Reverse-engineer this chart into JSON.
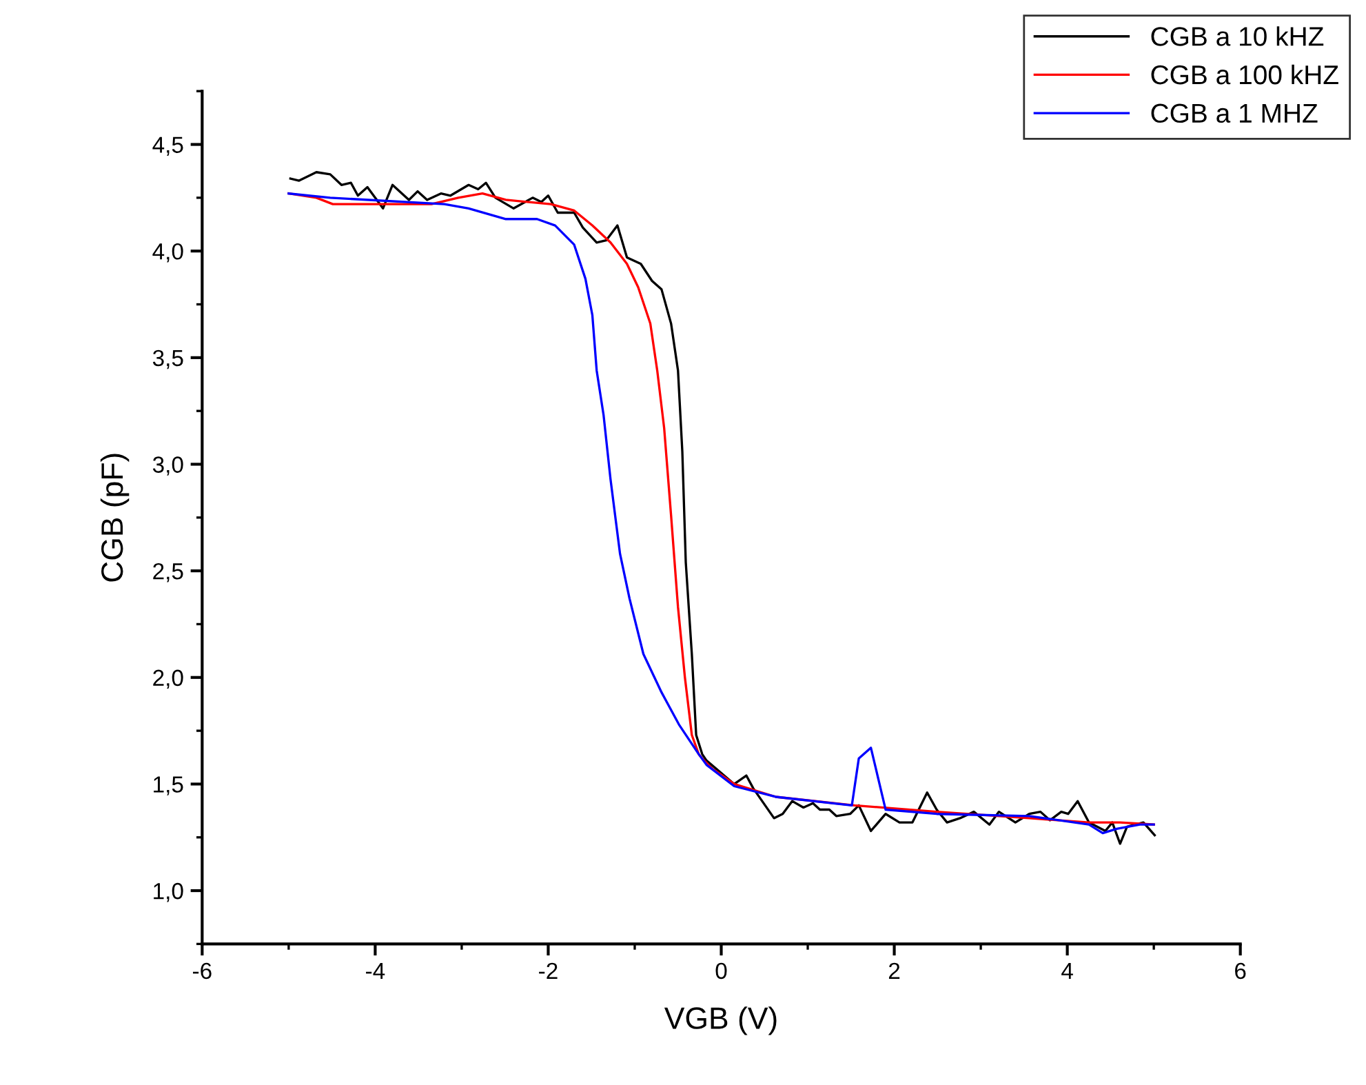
{
  "chart_data": {
    "type": "line",
    "xlabel": "VGB (V)",
    "ylabel": "CGB (pF)",
    "xlim": [
      -6,
      6
    ],
    "ylim": [
      0.75,
      4.75
    ],
    "xticks": [
      -6,
      -4,
      -2,
      0,
      2,
      4,
      6
    ],
    "yticks": [
      {
        "value": 1.0,
        "label": "1,0"
      },
      {
        "value": 1.5,
        "label": "1,5"
      },
      {
        "value": 2.0,
        "label": "2,0"
      },
      {
        "value": 2.5,
        "label": "2,5"
      },
      {
        "value": 3.0,
        "label": "3,0"
      },
      {
        "value": 3.5,
        "label": "3,5"
      },
      {
        "value": 4.0,
        "label": "4,0"
      },
      {
        "value": 4.5,
        "label": "4,5"
      }
    ],
    "grid": false,
    "legend": "top right",
    "marker": "none",
    "line_style": "solid",
    "series": [
      {
        "name": "CGB a 10 kHZ",
        "color": "#000000",
        "x": [
          -4.98,
          -4.88,
          -4.68,
          -4.52,
          -4.39,
          -4.28,
          -4.2,
          -4.09,
          -3.91,
          -3.8,
          -3.61,
          -3.51,
          -3.4,
          -3.24,
          -3.13,
          -2.92,
          -2.81,
          -2.72,
          -2.61,
          -2.4,
          -2.18,
          -2.08,
          -2.0,
          -1.89,
          -1.7,
          -1.6,
          -1.44,
          -1.33,
          -1.2,
          -1.09,
          -0.93,
          -0.8,
          -0.69,
          -0.58,
          -0.5,
          -0.45,
          -0.41,
          -0.34,
          -0.29,
          -0.22,
          -0.17,
          0.15,
          0.29,
          0.37,
          0.61,
          0.71,
          0.82,
          0.95,
          1.06,
          1.14,
          1.25,
          1.33,
          1.49,
          1.59,
          1.73,
          1.9,
          2.06,
          2.21,
          2.38,
          2.49,
          2.61,
          2.76,
          2.92,
          3.1,
          3.21,
          3.4,
          3.56,
          3.69,
          3.8,
          3.93,
          4.01,
          4.12,
          4.25,
          4.44,
          4.52,
          4.61,
          4.69,
          4.88,
          5.01
        ],
        "values": [
          4.34,
          4.33,
          4.37,
          4.36,
          4.31,
          4.32,
          4.26,
          4.3,
          4.2,
          4.31,
          4.24,
          4.28,
          4.24,
          4.27,
          4.26,
          4.31,
          4.29,
          4.32,
          4.25,
          4.2,
          4.25,
          4.23,
          4.26,
          4.18,
          4.18,
          4.11,
          4.04,
          4.05,
          4.12,
          3.97,
          3.94,
          3.86,
          3.82,
          3.66,
          3.44,
          3.06,
          2.54,
          2.11,
          1.73,
          1.64,
          1.61,
          1.5,
          1.54,
          1.48,
          1.34,
          1.36,
          1.42,
          1.39,
          1.41,
          1.38,
          1.38,
          1.35,
          1.36,
          1.4,
          1.28,
          1.36,
          1.32,
          1.32,
          1.46,
          1.38,
          1.32,
          1.34,
          1.37,
          1.31,
          1.37,
          1.32,
          1.36,
          1.37,
          1.33,
          1.37,
          1.36,
          1.42,
          1.32,
          1.28,
          1.32,
          1.22,
          1.3,
          1.32,
          1.26
        ]
      },
      {
        "name": "CGB a 100 kHZ",
        "color": "#ff0000",
        "x": [
          -5.0,
          -4.68,
          -4.49,
          -4.25,
          -3.35,
          -3.04,
          -2.76,
          -2.49,
          -1.97,
          -1.7,
          -1.49,
          -1.28,
          -1.09,
          -0.96,
          -0.82,
          -0.74,
          -0.66,
          -0.58,
          -0.5,
          -0.42,
          -0.34,
          -0.26,
          -0.22,
          -0.1,
          -0.06,
          0.15,
          0.63,
          1.54,
          2.49,
          3.56,
          4.25,
          4.61,
          5.0
        ],
        "values": [
          4.27,
          4.25,
          4.22,
          4.22,
          4.22,
          4.25,
          4.27,
          4.24,
          4.22,
          4.19,
          4.12,
          4.04,
          3.94,
          3.83,
          3.66,
          3.44,
          3.17,
          2.76,
          2.33,
          2.0,
          1.73,
          1.64,
          1.62,
          1.57,
          1.56,
          1.5,
          1.44,
          1.4,
          1.37,
          1.34,
          1.32,
          1.32,
          1.31
        ]
      },
      {
        "name": "CGB a 1 MHZ",
        "color": "#0000ff",
        "x": [
          -5.0,
          -4.52,
          -3.2,
          -2.92,
          -2.49,
          -2.13,
          -1.92,
          -1.7,
          -1.57,
          -1.49,
          -1.44,
          -1.36,
          -1.28,
          -1.17,
          -1.06,
          -0.9,
          -0.69,
          -0.49,
          -0.26,
          -0.17,
          0.15,
          0.63,
          1.51,
          1.59,
          1.73,
          1.9,
          2.49,
          3.56,
          4.25,
          4.41,
          4.57,
          4.84,
          5.0
        ],
        "values": [
          4.27,
          4.25,
          4.22,
          4.2,
          4.15,
          4.15,
          4.12,
          4.03,
          3.87,
          3.7,
          3.44,
          3.23,
          2.93,
          2.58,
          2.37,
          2.11,
          1.93,
          1.78,
          1.64,
          1.59,
          1.49,
          1.44,
          1.4,
          1.62,
          1.67,
          1.38,
          1.36,
          1.35,
          1.31,
          1.27,
          1.29,
          1.31,
          1.31
        ]
      }
    ]
  }
}
